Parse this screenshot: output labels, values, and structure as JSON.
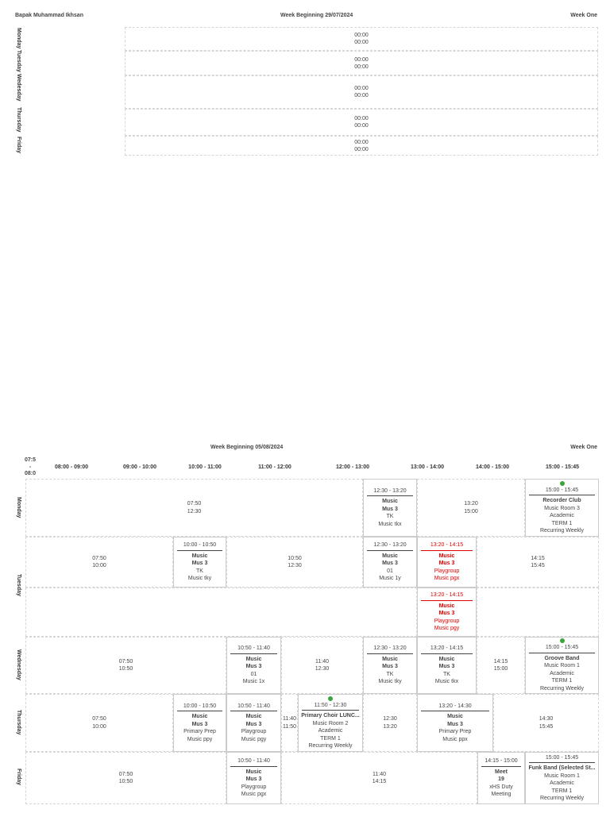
{
  "week1": {
    "teacher": "Bapak Muhammad Ikhsan",
    "title": "Week Beginning 29/07/2024",
    "week_label": "Week One",
    "days": [
      "Monday",
      "Tuesday",
      "Wedesday",
      "Thursday",
      "Friday"
    ],
    "rows": [
      {
        "start": "00:00",
        "end": "00:00"
      },
      {
        "start": "00:00",
        "end": "00:00"
      },
      {
        "start": "00:00",
        "end": "00:00"
      },
      {
        "start": "00:00",
        "end": "00:00"
      },
      {
        "start": "00:00",
        "end": "00:00"
      }
    ]
  },
  "week2": {
    "title": "Week Beginning 05/08/2024",
    "week_label": "Week One",
    "time_corner": [
      "07:5",
      "-",
      "08:0"
    ],
    "columns": [
      "08:00 - 09:00",
      "09:00 - 10:00",
      "10:00 - 11:00",
      "11:00 - 12:00",
      "12:00 - 13:00",
      "13:00 - 14:00",
      "14:00 - 15:00",
      "15:00 - 15:45"
    ],
    "days": [
      "Monday",
      "Tuesday",
      "Wednesday",
      "Thursday",
      "Friday"
    ],
    "cells": {
      "mon_free1": [
        "07:50",
        "12:30"
      ],
      "mon_l1": {
        "time": "12:30 - 13:20",
        "subject": "Music",
        "room": "Mus 3",
        "grade": "TK",
        "group": "Music tkx"
      },
      "mon_free2": [
        "13:20",
        "15:00"
      ],
      "mon_l2": {
        "time": "15:00 - 15:45",
        "name": "Recorder Club",
        "room": "Music Room 3",
        "cat": "Academic",
        "term": "TERM 1",
        "rec": "Recurring Weekly"
      },
      "tue_free1": [
        "07:50",
        "10:00"
      ],
      "tue_l1": {
        "time": "10:00 - 10:50",
        "subject": "Music",
        "room": "Mus 3",
        "grade": "TK",
        "group": "Music tky"
      },
      "tue_free2": [
        "10:50",
        "12:30"
      ],
      "tue_l2": {
        "time": "12:30 - 13:20",
        "subject": "Music",
        "room": "Mus 3",
        "grade": "01",
        "group": "Music 1y"
      },
      "tue_l3": {
        "time": "13:20 - 14:15",
        "subject": "Music",
        "room": "Mus 3",
        "grade": "Playgroup",
        "group": "Music pgx"
      },
      "tue_free3": [
        "14:15",
        "15:45"
      ],
      "tue_l4": {
        "time": "13:20 - 14:15",
        "subject": "Music",
        "room": "Mus 3",
        "grade": "Playgroup",
        "group": "Music pgy"
      },
      "wed_free1": [
        "07:50",
        "10:50"
      ],
      "wed_l1": {
        "time": "10:50 - 11:40",
        "subject": "Music",
        "room": "Mus 3",
        "grade": "01",
        "group": "Music 1x"
      },
      "wed_free2": [
        "11:40",
        "12:30"
      ],
      "wed_l2": {
        "time": "12:30 - 13:20",
        "subject": "Music",
        "room": "Mus 3",
        "grade": "TK",
        "group": "Music tky"
      },
      "wed_l3": {
        "time": "13:20 - 14:15",
        "subject": "Music",
        "room": "Mus 3",
        "grade": "TK",
        "group": "Music tkx"
      },
      "wed_free3": [
        "14:15",
        "15:00"
      ],
      "wed_l4": {
        "time": "15:00 - 15:45",
        "name": "Groove Band",
        "room": "Music Room 1",
        "cat": "Academic",
        "term": "TERM 1",
        "rec": "Recurring Weekly"
      },
      "thu_free1": [
        "07:50",
        "10:00"
      ],
      "thu_l1": {
        "time": "10:00 - 10:50",
        "subject": "Music",
        "room": "Mus 3",
        "grade": "Primary Prep",
        "group": "Music ppy"
      },
      "thu_l2": {
        "time": "10:50 - 11:40",
        "subject": "Music",
        "room": "Mus 3",
        "grade": "Playgroup",
        "group": "Music pgy"
      },
      "thu_free2": [
        "11:40",
        "11:50"
      ],
      "thu_l3": {
        "time": "11:50 - 12:30",
        "name": "Primary Choir LUNC...",
        "room": "Music Room 2",
        "cat": "Academic",
        "term": "TERM 1",
        "rec": "Recurring Weekly"
      },
      "thu_free3": [
        "12:30",
        "13:20"
      ],
      "thu_l4": {
        "time": "13:20 - 14:30",
        "subject": "Music",
        "room": "Mus 3",
        "grade": "Primary Prep",
        "group": "Music ppx"
      },
      "thu_free4": [
        "14:30",
        "15:45"
      ],
      "fri_free1": [
        "07:50",
        "10:50"
      ],
      "fri_l1": {
        "time": "10:50 - 11:40",
        "subject": "Music",
        "room": "Mus 3",
        "grade": "Playgroup",
        "group": "Music pgx"
      },
      "fri_free2": [
        "11:40",
        "14:15"
      ],
      "fri_l2": {
        "time": "14:15 - 15:00",
        "name": "Meet",
        "room": "19",
        "cat": "xHS Duty",
        "term": "Meeting"
      },
      "fri_l3": {
        "time": "15:00 - 15:45",
        "name": "Funk Band (Selected St...",
        "room": "Music Room 1",
        "cat": "Academic",
        "term": "TERM 1",
        "rec": "Recurring Weekly"
      }
    }
  },
  "colors": {
    "accent_red": "#e10000",
    "dot_green": "#3aa63a",
    "border": "#d6d6d6"
  }
}
